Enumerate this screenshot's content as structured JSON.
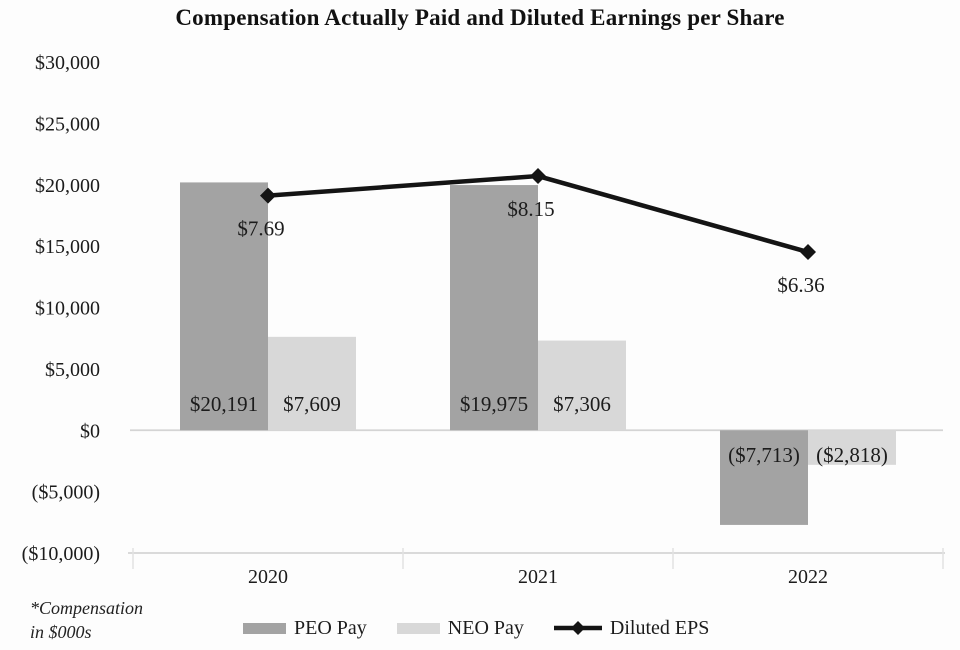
{
  "page": {
    "title": "Compensation Actually Paid and Diluted Earnings per Share"
  },
  "footnote": {
    "line1": "*Compensation",
    "line2": "in $000s"
  },
  "colors": {
    "peo_bar": "#a3a3a3",
    "neo_bar": "#d8d8d8",
    "eps_line": "#141414",
    "axis_line": "#d4d4d4",
    "tick_line": "#e2e2e2",
    "label_text": "#1c1c1c",
    "background": "#fdfdfd"
  },
  "legend": {
    "items": [
      {
        "label": "PEO Pay",
        "swatch": "bar-dark"
      },
      {
        "label": "NEO Pay",
        "swatch": "bar-light"
      },
      {
        "label": "Diluted EPS",
        "swatch": "line-diamond"
      }
    ]
  },
  "chart_data": {
    "type": "combo-bar-line",
    "title": "Compensation Actually Paid and Diluted Earnings per Share",
    "categories": [
      "2020",
      "2021",
      "2022"
    ],
    "series": [
      {
        "name": "PEO Pay",
        "type": "bar",
        "axis": "primary",
        "color_key": "peo_bar",
        "values": [
          20191,
          19975,
          -7713
        ],
        "data_labels": [
          "$20,191",
          "$19,975",
          "($7,713)"
        ]
      },
      {
        "name": "NEO Pay",
        "type": "bar",
        "axis": "primary",
        "color_key": "neo_bar",
        "values": [
          7609,
          7306,
          -2818
        ],
        "data_labels": [
          "$7,609",
          "$7,306",
          "($2,818)"
        ]
      },
      {
        "name": "Diluted EPS",
        "type": "line",
        "axis": "secondary",
        "marker": "diamond",
        "color_key": "eps_line",
        "values": [
          7.69,
          8.15,
          6.36
        ],
        "data_labels": [
          "$7.69",
          "$8.15",
          "$6.36"
        ]
      }
    ],
    "primary_y_axis": {
      "min": -10000,
      "max": 30000,
      "step": 5000,
      "tick_values": [
        30000,
        25000,
        20000,
        15000,
        10000,
        5000,
        0,
        -5000,
        -10000
      ],
      "tick_labels": [
        "$30,000",
        "$25,000",
        "$20,000",
        "$15,000",
        "$10,000",
        "$5,000",
        "$0",
        "($5,000)",
        "($10,000)"
      ]
    },
    "secondary_y_axis": {
      "visible": false
    },
    "gridlines": false,
    "legend_position": "bottom",
    "units_note": "*Compensation in $000s"
  }
}
